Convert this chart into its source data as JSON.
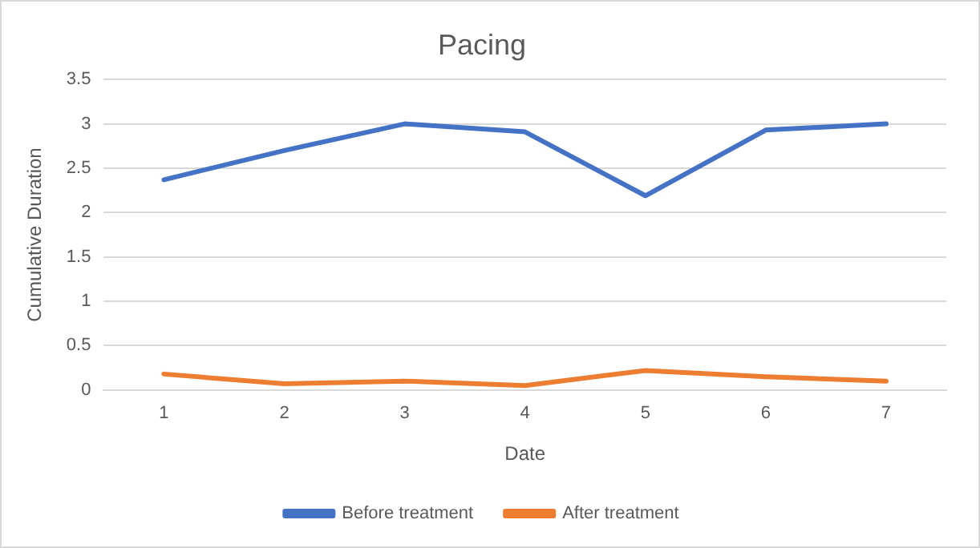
{
  "chart_data": {
    "type": "line",
    "title": "Pacing",
    "xlabel": "Date",
    "ylabel": "Cumulative Duration",
    "categories": [
      "1",
      "2",
      "3",
      "4",
      "5",
      "6",
      "7"
    ],
    "series": [
      {
        "name": "Before treatment",
        "color": "#4472c4",
        "values": [
          2.37,
          2.7,
          3.0,
          2.91,
          2.19,
          2.93,
          3.0
        ]
      },
      {
        "name": "After treatment",
        "color": "#ed7d31",
        "values": [
          0.18,
          0.07,
          0.1,
          0.05,
          0.22,
          0.15,
          0.1
        ]
      }
    ],
    "ylim": [
      0,
      3.5
    ],
    "yticks": [
      0,
      0.5,
      1,
      1.5,
      2,
      2.5,
      3,
      3.5
    ],
    "grid": "y",
    "legend": "bottom",
    "marker": "none",
    "line_style": "solid"
  }
}
